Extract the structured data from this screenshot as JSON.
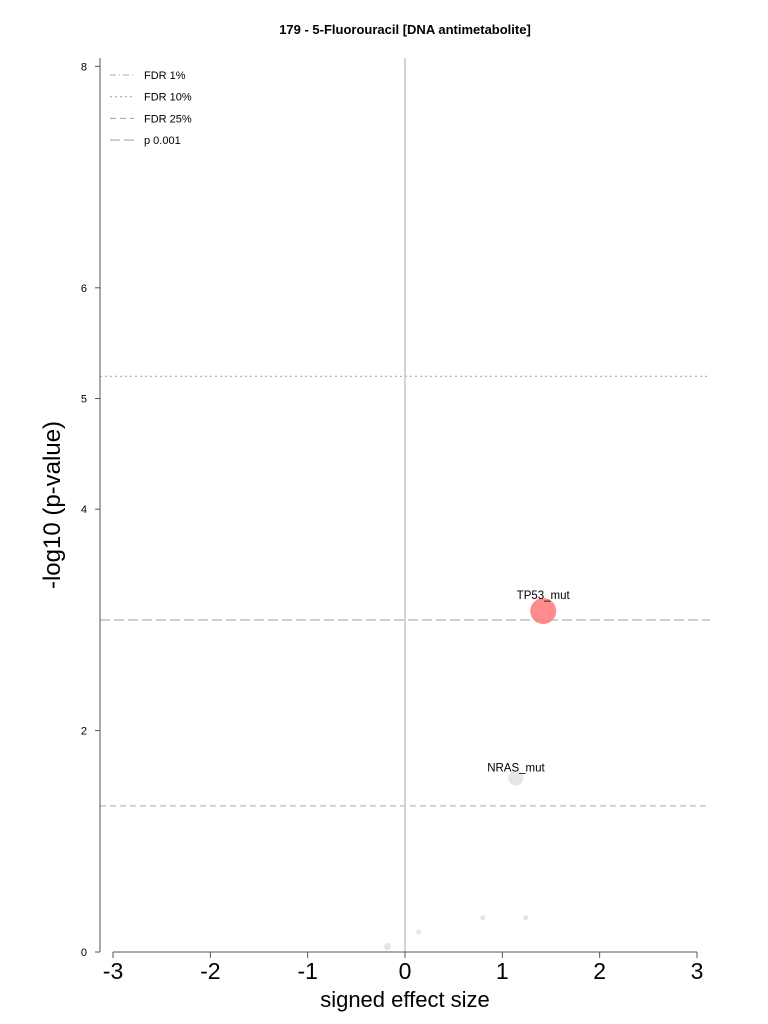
{
  "chart_data": {
    "type": "scatter",
    "title": "179 - 5-Fluorouracil [DNA antimetabolite]",
    "xlabel": "signed effect size",
    "ylabel": "-log10 (p-value)",
    "xlim": [
      -3.15,
      3.15
    ],
    "ylim": [
      0,
      8.1
    ],
    "x_ticks": [
      -3,
      -2,
      -1,
      0,
      1,
      2,
      3
    ],
    "x_tick_labels": [
      "-3",
      "-2",
      "-1",
      "0",
      "1",
      "2",
      "3"
    ],
    "y_ticks": [
      0,
      2,
      4,
      5,
      6,
      8
    ],
    "y_tick_labels": [
      "0",
      "2",
      "4",
      "5",
      "6",
      "8"
    ],
    "grid": false,
    "legend_position": "top-left",
    "legend": [
      {
        "label": "FDR 1%",
        "style": "dashdot"
      },
      {
        "label": "FDR 10%",
        "style": "dotted"
      },
      {
        "label": "FDR 25%",
        "style": "dashed"
      },
      {
        "label": "p 0.001",
        "style": "longdash"
      }
    ],
    "threshold_lines": [
      {
        "name": "FDR 10%",
        "y": 5.2,
        "style": "dotted"
      },
      {
        "name": "p 0.001",
        "y": 3.0,
        "style": "longdash"
      },
      {
        "name": "FDR 25%",
        "y": 1.32,
        "style": "dashed"
      }
    ],
    "points": [
      {
        "label": "TP53_mut",
        "x": 1.42,
        "y": 3.08,
        "size": "large",
        "color": "#ff8080"
      },
      {
        "label": "NRAS_mut",
        "x": 1.14,
        "y": 1.57,
        "size": "medium",
        "color": "#e6e6e6"
      },
      {
        "label": "",
        "x": -0.18,
        "y": 0.05,
        "size": "small",
        "color": "#e6e6e6"
      },
      {
        "label": "",
        "x": 0.14,
        "y": 0.18,
        "size": "tiny",
        "color": "#e6e6e6"
      },
      {
        "label": "",
        "x": 0.8,
        "y": 0.31,
        "size": "tiny",
        "color": "#e6e6e6"
      },
      {
        "label": "",
        "x": 1.24,
        "y": 0.31,
        "size": "tiny",
        "color": "#e6e6e6"
      }
    ],
    "colors": {
      "highlight": "#ff8080",
      "neutral": "#e6e6e6",
      "threshold": "#aaaaaa",
      "zero_line": "#c8c8c8",
      "axis": "#555555"
    }
  }
}
